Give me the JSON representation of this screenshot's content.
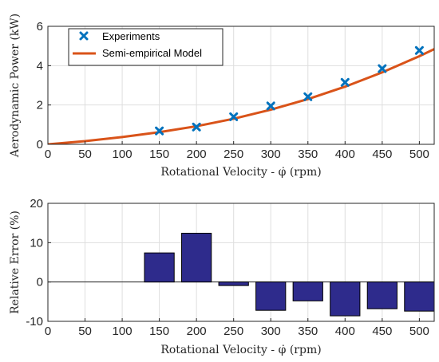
{
  "chart_data": [
    {
      "type": "line",
      "ylabel": "Aerodynamic Power (kW)",
      "xlabel": "Rotational Velocity - φ̇ (rpm)",
      "xlim": [
        0,
        520
      ],
      "ylim": [
        0,
        6
      ],
      "x_ticks": [
        0,
        50,
        100,
        150,
        200,
        250,
        300,
        350,
        400,
        450,
        500
      ],
      "y_ticks": [
        0,
        2,
        4,
        6
      ],
      "grid": true,
      "legend_position": "top-left",
      "series": [
        {
          "name": "Experiments",
          "kind": "scatter",
          "marker": "x",
          "color": "#0072BD",
          "x": [
            150,
            200,
            250,
            300,
            350,
            400,
            450,
            500
          ],
          "y": [
            0.68,
            0.88,
            1.4,
            1.95,
            2.42,
            3.15,
            3.85,
            4.77
          ]
        },
        {
          "name": "Semi-empirical Model",
          "kind": "line",
          "color": "#D95319",
          "x": [
            0,
            50,
            100,
            150,
            200,
            250,
            300,
            350,
            400,
            450,
            500,
            520
          ],
          "y": [
            0,
            0.16,
            0.37,
            0.62,
            0.92,
            1.3,
            1.76,
            2.3,
            2.93,
            3.66,
            4.48,
            4.84
          ]
        }
      ]
    },
    {
      "type": "bar",
      "ylabel": "Relative Error (%)",
      "xlabel": "Rotational Velocity - φ̇ (rpm)",
      "xlim": [
        0,
        520
      ],
      "ylim": [
        -10,
        20
      ],
      "x_ticks": [
        0,
        50,
        100,
        150,
        200,
        250,
        300,
        350,
        400,
        450,
        500
      ],
      "y_ticks": [
        -10,
        0,
        10,
        20
      ],
      "grid": true,
      "bar_color": "#2E2B8C",
      "x": [
        150,
        200,
        250,
        300,
        350,
        400,
        450,
        500
      ],
      "values": [
        7.4,
        12.4,
        -0.9,
        -7.2,
        -4.8,
        -8.6,
        -6.8,
        -7.4
      ]
    }
  ]
}
